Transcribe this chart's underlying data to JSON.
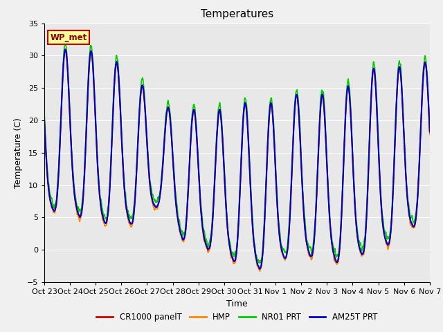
{
  "title": "Temperatures",
  "ylabel": "Temperature (C)",
  "xlabel": "Time",
  "ylim": [
    -5,
    35
  ],
  "yticks": [
    -5,
    0,
    5,
    10,
    15,
    20,
    25,
    30,
    35
  ],
  "station_label": "WP_met",
  "legend": [
    "CR1000 panelT",
    "HMP",
    "NR01 PRT",
    "AM25T PRT"
  ],
  "colors": [
    "#cc0000",
    "#ff8800",
    "#00cc00",
    "#0000cc"
  ],
  "linewidths": [
    1.2,
    1.2,
    1.2,
    1.5
  ],
  "bg_color": "#e8e8e8",
  "fig_color": "#f0f0f0",
  "x_tick_labels": [
    "Oct 23",
    "Oct 24",
    "Oct 25",
    "Oct 26",
    "Oct 27",
    "Oct 28",
    "Oct 29",
    "Oct 30",
    "Oct 31",
    "Nov 1",
    "Nov 2",
    "Nov 3",
    "Nov 4",
    "Nov 5",
    "Nov 6",
    "Nov 7"
  ],
  "n_days": 15,
  "points_per_day": 144
}
